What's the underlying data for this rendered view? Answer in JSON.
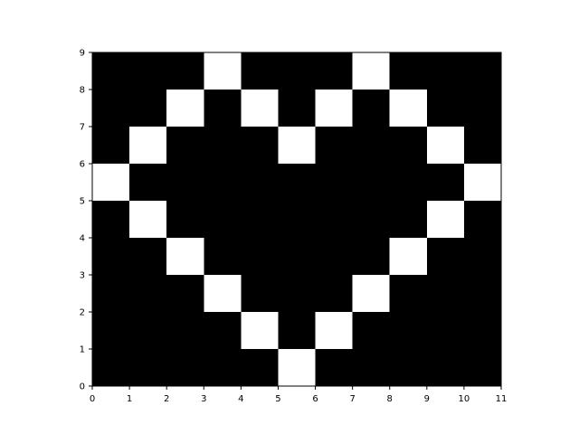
{
  "chart_data": {
    "type": "heatmap",
    "title": "",
    "xlabel": "",
    "ylabel": "",
    "xlim": [
      0,
      11
    ],
    "ylim": [
      0,
      9
    ],
    "x_ticks": [
      "0",
      "1",
      "2",
      "3",
      "4",
      "5",
      "6",
      "7",
      "8",
      "9",
      "10",
      "11"
    ],
    "y_ticks": [
      "0",
      "1",
      "2",
      "3",
      "4",
      "5",
      "6",
      "7",
      "8",
      "9"
    ],
    "grid": false,
    "colormap": {
      "0": "#000000",
      "1": "#ffffff"
    },
    "rows_top_to_bottom": [
      [
        0,
        0,
        0,
        1,
        0,
        0,
        0,
        1,
        0,
        0,
        0
      ],
      [
        0,
        0,
        1,
        0,
        1,
        0,
        1,
        0,
        1,
        0,
        0
      ],
      [
        0,
        1,
        0,
        0,
        0,
        1,
        0,
        0,
        0,
        1,
        0
      ],
      [
        1,
        0,
        0,
        0,
        0,
        0,
        0,
        0,
        0,
        0,
        1
      ],
      [
        0,
        1,
        0,
        0,
        0,
        0,
        0,
        0,
        0,
        1,
        0
      ],
      [
        0,
        0,
        1,
        0,
        0,
        0,
        0,
        0,
        1,
        0,
        0
      ],
      [
        0,
        0,
        0,
        1,
        0,
        0,
        0,
        1,
        0,
        0,
        0
      ],
      [
        0,
        0,
        0,
        0,
        1,
        0,
        1,
        0,
        0,
        0,
        0
      ],
      [
        0,
        0,
        0,
        0,
        0,
        1,
        0,
        0,
        0,
        0,
        0
      ]
    ]
  }
}
